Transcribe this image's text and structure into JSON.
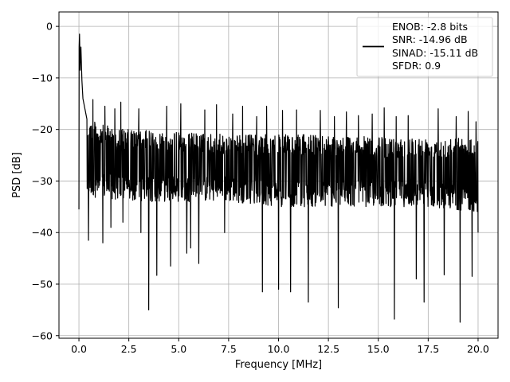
{
  "chart_data": {
    "type": "line",
    "title": "",
    "xlabel": "Frequency [MHz]",
    "ylabel": "PSD [dB]",
    "xlim": [
      -1.0,
      21.0
    ],
    "ylim": [
      -60.5,
      2.8
    ],
    "xticks": [
      0.0,
      2.5,
      5.0,
      7.5,
      10.0,
      12.5,
      15.0,
      17.5,
      20.0
    ],
    "xtick_labels": [
      "0.0",
      "2.5",
      "5.0",
      "7.5",
      "10.0",
      "12.5",
      "15.0",
      "17.5",
      "20.0"
    ],
    "yticks": [
      0,
      -10,
      -20,
      -30,
      -40,
      -50,
      -60
    ],
    "ytick_labels": [
      "0",
      "−10",
      "−20",
      "−30",
      "−40",
      "−50",
      "−60"
    ],
    "grid": true,
    "legend_position": "top-right",
    "legend_lines": [
      "ENOB: -2.8 bits",
      "SNR: -14.96 dB",
      "SINAD: -15.11 dB",
      "SFDR: 0.9"
    ],
    "series": [
      {
        "color": "#000000",
        "x_start": 0.0,
        "x_end": 20.0,
        "peak": [
          [
            0.0,
            0.0
          ],
          [
            0.01,
            -4.0
          ],
          [
            0.03,
            -1.5
          ],
          [
            0.06,
            -8.5
          ],
          [
            0.1,
            -4.0
          ],
          [
            0.15,
            -10.5
          ],
          [
            0.2,
            -14.0
          ],
          [
            0.3,
            -16.0
          ],
          [
            0.4,
            -18.0
          ]
        ],
        "envelope_upper": [
          [
            0.4,
            -17.5
          ],
          [
            1.0,
            -19.0
          ],
          [
            2.5,
            -20.0
          ],
          [
            5.0,
            -20.5
          ],
          [
            7.5,
            -21.0
          ],
          [
            10.0,
            -21.0
          ],
          [
            12.5,
            -21.0
          ],
          [
            15.0,
            -21.5
          ],
          [
            17.5,
            -21.5
          ],
          [
            20.0,
            -21.5
          ]
        ],
        "envelope_lower": [
          [
            0.4,
            -33.0
          ],
          [
            2.5,
            -34.0
          ],
          [
            5.0,
            -34.0
          ],
          [
            7.5,
            -34.0
          ],
          [
            10.0,
            -35.0
          ],
          [
            12.5,
            -35.0
          ],
          [
            15.0,
            -35.0
          ],
          [
            17.5,
            -35.0
          ],
          [
            20.0,
            -36.0
          ]
        ],
        "spikes_up": [
          [
            0.7,
            -14.2
          ],
          [
            1.3,
            -15.5
          ],
          [
            1.8,
            -16.0
          ],
          [
            2.1,
            -14.7
          ],
          [
            3.0,
            -16.0
          ],
          [
            3.9,
            -14.5
          ],
          [
            4.4,
            -15.5
          ],
          [
            5.1,
            -15.0
          ],
          [
            5.6,
            -14.3
          ],
          [
            6.3,
            -16.2
          ],
          [
            6.9,
            -15.2
          ],
          [
            7.7,
            -17.0
          ],
          [
            8.2,
            -15.5
          ],
          [
            8.9,
            -17.5
          ],
          [
            9.4,
            -15.5
          ],
          [
            10.2,
            -16.3
          ],
          [
            10.9,
            -16.2
          ],
          [
            11.5,
            -16.8
          ],
          [
            12.1,
            -16.3
          ],
          [
            12.8,
            -17.5
          ],
          [
            13.4,
            -16.6
          ],
          [
            14.0,
            -17.3
          ],
          [
            14.7,
            -17.0
          ],
          [
            15.3,
            -15.8
          ],
          [
            15.9,
            -17.5
          ],
          [
            16.5,
            -17.3
          ],
          [
            17.3,
            -17.5
          ],
          [
            18.0,
            -16.0
          ],
          [
            18.3,
            -18.7
          ],
          [
            18.9,
            -17.5
          ],
          [
            19.5,
            -16.5
          ],
          [
            19.9,
            -18.5
          ]
        ],
        "spikes_down": [
          [
            0.38,
            -35.5
          ],
          [
            0.48,
            -41.5
          ],
          [
            1.2,
            -42.0
          ],
          [
            1.6,
            -39.0
          ],
          [
            2.2,
            -38.0
          ],
          [
            3.1,
            -40.0
          ],
          [
            3.5,
            -55.0
          ],
          [
            3.9,
            -48.3
          ],
          [
            4.6,
            -46.5
          ],
          [
            5.4,
            -44.0
          ],
          [
            5.6,
            -43.0
          ],
          [
            6.0,
            -46.0
          ],
          [
            7.3,
            -40.0
          ],
          [
            9.2,
            -51.5
          ],
          [
            10.0,
            -51.0
          ],
          [
            10.6,
            -51.5
          ],
          [
            11.5,
            -53.5
          ],
          [
            13.0,
            -54.6
          ],
          [
            15.8,
            -56.8
          ],
          [
            16.9,
            -49.0
          ],
          [
            17.3,
            -53.5
          ],
          [
            18.3,
            -48.2
          ],
          [
            19.1,
            -57.4
          ],
          [
            19.7,
            -48.5
          ],
          [
            20.0,
            -40.0
          ]
        ]
      }
    ]
  }
}
